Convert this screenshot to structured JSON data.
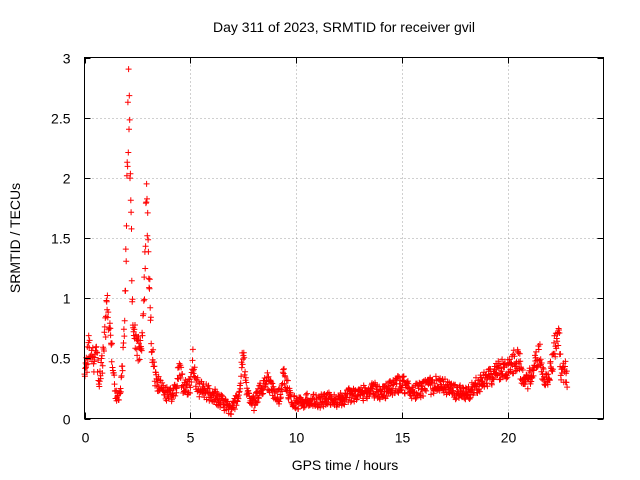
{
  "chart_data": {
    "type": "scatter",
    "title": "Day 311 of 2023, SRMTID for receiver gvil",
    "xlabel": "GPS time / hours",
    "ylabel": "SRMTID / TECUs",
    "xlim": [
      0,
      24.5
    ],
    "ylim": [
      0,
      3
    ],
    "xticks": [
      0,
      5,
      10,
      15,
      20
    ],
    "xtick_labels": [
      "0",
      "5",
      "10",
      "15",
      "20"
    ],
    "yticks": [
      0,
      0.5,
      1,
      1.5,
      2,
      2.5,
      3
    ],
    "ytick_labels": [
      "0",
      "0.5",
      "1",
      "1.5",
      "2",
      "2.5",
      "3"
    ],
    "grid": true,
    "marker": "+",
    "color": "#ff0000",
    "series": [
      {
        "name": "SRMTID",
        "profile": [
          [
            0.0,
            0.32
          ],
          [
            0.1,
            0.45
          ],
          [
            0.2,
            0.6
          ],
          [
            0.3,
            0.5
          ],
          [
            0.5,
            0.48
          ],
          [
            0.6,
            0.52
          ],
          [
            0.7,
            0.3
          ],
          [
            0.8,
            0.42
          ],
          [
            0.9,
            0.55
          ],
          [
            1.0,
            0.78
          ],
          [
            1.05,
            1.02
          ],
          [
            1.1,
            0.85
          ],
          [
            1.2,
            0.72
          ],
          [
            1.3,
            0.55
          ],
          [
            1.4,
            0.3
          ],
          [
            1.5,
            0.2
          ],
          [
            1.6,
            0.15
          ],
          [
            1.7,
            0.22
          ],
          [
            1.8,
            0.45
          ],
          [
            1.9,
            0.75
          ],
          [
            1.95,
            1.3
          ],
          [
            2.0,
            1.9
          ],
          [
            2.05,
            2.4
          ],
          [
            2.1,
            2.75
          ],
          [
            2.15,
            2.3
          ],
          [
            2.2,
            1.6
          ],
          [
            2.25,
            1.1
          ],
          [
            2.3,
            0.8
          ],
          [
            2.4,
            0.7
          ],
          [
            2.5,
            0.6
          ],
          [
            2.6,
            0.55
          ],
          [
            2.7,
            0.55
          ],
          [
            2.8,
            0.9
          ],
          [
            2.85,
            1.3
          ],
          [
            2.9,
            1.7
          ],
          [
            2.95,
            1.85
          ],
          [
            3.0,
            1.5
          ],
          [
            3.05,
            1.2
          ],
          [
            3.1,
            0.9
          ],
          [
            3.2,
            0.55
          ],
          [
            3.3,
            0.38
          ],
          [
            3.4,
            0.3
          ],
          [
            3.5,
            0.28
          ],
          [
            3.7,
            0.22
          ],
          [
            4.0,
            0.2
          ],
          [
            4.3,
            0.22
          ],
          [
            4.5,
            0.45
          ],
          [
            4.6,
            0.3
          ],
          [
            4.8,
            0.25
          ],
          [
            5.0,
            0.28
          ],
          [
            5.1,
            0.55
          ],
          [
            5.2,
            0.35
          ],
          [
            5.4,
            0.25
          ],
          [
            5.8,
            0.22
          ],
          [
            6.2,
            0.18
          ],
          [
            6.6,
            0.12
          ],
          [
            6.9,
            0.08
          ],
          [
            7.1,
            0.12
          ],
          [
            7.3,
            0.2
          ],
          [
            7.5,
            0.55
          ],
          [
            7.6,
            0.28
          ],
          [
            7.8,
            0.18
          ],
          [
            8.0,
            0.12
          ],
          [
            8.3,
            0.25
          ],
          [
            8.6,
            0.32
          ],
          [
            8.9,
            0.22
          ],
          [
            9.2,
            0.18
          ],
          [
            9.4,
            0.35
          ],
          [
            9.6,
            0.25
          ],
          [
            9.8,
            0.14
          ],
          [
            10.2,
            0.13
          ],
          [
            10.6,
            0.16
          ],
          [
            11.0,
            0.14
          ],
          [
            11.5,
            0.16
          ],
          [
            12.0,
            0.15
          ],
          [
            12.5,
            0.2
          ],
          [
            13.0,
            0.2
          ],
          [
            13.5,
            0.24
          ],
          [
            14.0,
            0.22
          ],
          [
            14.5,
            0.25
          ],
          [
            15.0,
            0.3
          ],
          [
            15.5,
            0.22
          ],
          [
            16.0,
            0.25
          ],
          [
            16.5,
            0.28
          ],
          [
            17.0,
            0.27
          ],
          [
            17.5,
            0.22
          ],
          [
            18.0,
            0.2
          ],
          [
            18.5,
            0.27
          ],
          [
            19.0,
            0.33
          ],
          [
            19.5,
            0.4
          ],
          [
            20.0,
            0.42
          ],
          [
            20.3,
            0.48
          ],
          [
            20.5,
            0.5
          ],
          [
            20.6,
            0.4
          ],
          [
            20.8,
            0.28
          ],
          [
            21.0,
            0.33
          ],
          [
            21.3,
            0.45
          ],
          [
            21.5,
            0.55
          ],
          [
            21.6,
            0.4
          ],
          [
            21.8,
            0.3
          ],
          [
            22.0,
            0.4
          ],
          [
            22.2,
            0.6
          ],
          [
            22.4,
            0.65
          ],
          [
            22.5,
            0.35
          ],
          [
            22.7,
            0.4
          ],
          [
            22.8,
            0.3
          ]
        ]
      }
    ]
  }
}
